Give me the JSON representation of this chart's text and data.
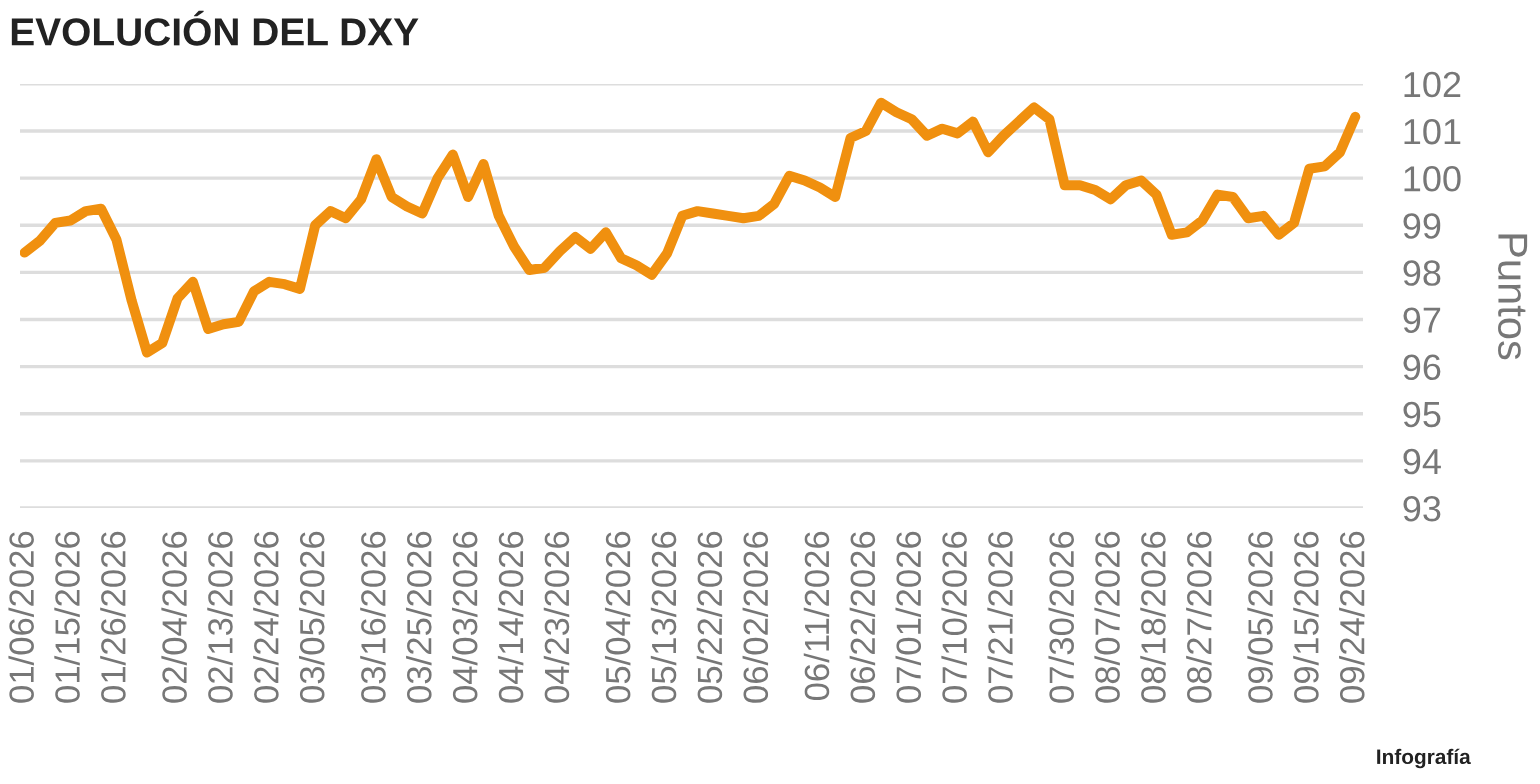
{
  "chart_data": {
    "type": "line",
    "title": "EVOLUCIÓN DEL DXY",
    "ylabel": "Puntos",
    "annotations": [
      "Infografía"
    ],
    "categories": [
      "01/06/2026",
      null,
      null,
      "01/15/2026",
      null,
      null,
      "01/26/2026",
      null,
      null,
      null,
      "02/04/2026",
      null,
      null,
      "02/13/2026",
      null,
      null,
      "02/24/2026",
      null,
      null,
      "03/05/2026",
      null,
      null,
      null,
      "03/16/2026",
      null,
      null,
      "03/25/2026",
      null,
      null,
      "04/03/2026",
      null,
      null,
      "04/14/2026",
      null,
      null,
      "04/23/2026",
      null,
      null,
      null,
      "05/04/2026",
      null,
      null,
      "05/13/2026",
      null,
      null,
      "05/22/2026",
      null,
      null,
      "06/02/2026",
      null,
      null,
      null,
      "06/11/2026",
      null,
      null,
      "06/22/2026",
      null,
      null,
      "07/01/2026",
      null,
      null,
      "07/10/2026",
      null,
      null,
      "07/21/2026",
      null,
      null,
      null,
      "07/30/2026",
      null,
      null,
      "08/07/2026",
      null,
      null,
      "08/18/2026",
      null,
      null,
      "08/27/2026",
      null,
      null,
      null,
      "09/05/2026",
      null,
      null,
      "09/15/2026",
      null,
      null,
      "09/24/2026"
    ],
    "series": [
      {
        "color": "#f0900f",
        "values": [
          98.42,
          98.67,
          99.05,
          99.1,
          99.3,
          99.35,
          98.7,
          97.4,
          96.3,
          96.5,
          97.45,
          97.8,
          96.8,
          96.9,
          96.95,
          97.6,
          97.8,
          97.75,
          97.65,
          99.0,
          99.3,
          99.15,
          99.55,
          100.4,
          99.6,
          99.4,
          99.25,
          100.0,
          100.5,
          99.6,
          100.3,
          99.2,
          98.55,
          98.05,
          98.1,
          98.45,
          98.75,
          98.5,
          98.85,
          98.3,
          98.15,
          97.95,
          98.4,
          99.2,
          99.3,
          99.25,
          99.2,
          99.15,
          99.2,
          99.45,
          100.05,
          99.95,
          99.8,
          99.6,
          100.85,
          101.0,
          101.6,
          101.4,
          101.25,
          100.9,
          101.05,
          100.95,
          101.2,
          100.55,
          100.9,
          101.2,
          101.5,
          101.25,
          99.85,
          99.85,
          99.75,
          99.55,
          99.85,
          99.95,
          99.65,
          98.8,
          98.85,
          99.1,
          99.65,
          99.6,
          99.15,
          99.2,
          98.8,
          99.05,
          100.2,
          100.25,
          100.55,
          101.3
        ]
      }
    ],
    "ylim": [
      93,
      102
    ],
    "yticks": [
      93,
      94,
      95,
      96,
      97,
      98,
      99,
      100,
      101,
      102
    ],
    "grid": "y",
    "marker": "none",
    "line_style": "solid"
  }
}
